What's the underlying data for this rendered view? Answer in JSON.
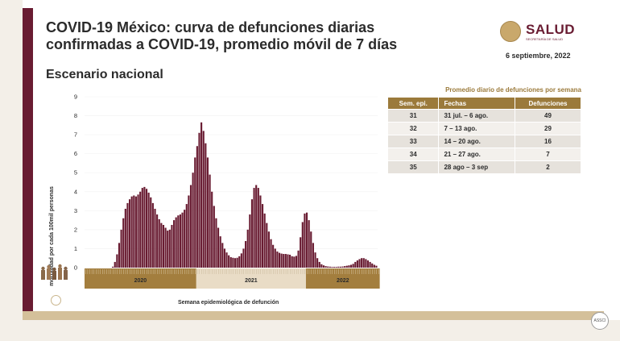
{
  "header": {
    "title_line1": "COVID-19 México: curva de defunciones diarias",
    "title_line2": "confirmadas a COVID-19, promedio móvil de 7 días",
    "subtitle": "Escenario nacional",
    "date": "6 septiembre, 2022",
    "logo_text": "SALUD",
    "logo_subtext": "SECRETARÍA DE SALUD"
  },
  "colors": {
    "brand": "#691c32",
    "gold": "#9b7a3b",
    "year2020": "#a37e3e",
    "year2021": "#e9dcc6",
    "year2022": "#a37e3e"
  },
  "chart_data": {
    "type": "bar",
    "title": "",
    "xlabel": "Semana epidemiológica de defunción",
    "ylabel": "mortalidad por cada 100mil personas",
    "ylim": [
      0,
      9
    ],
    "yticks": [
      "0",
      "1",
      "2",
      "3",
      "4",
      "5",
      "6",
      "7",
      "8",
      "9"
    ],
    "grid": false,
    "years": [
      {
        "label": "2020",
        "weeks": 53
      },
      {
        "label": "2021",
        "weeks": 52
      },
      {
        "label": "2022",
        "weeks": 35
      }
    ],
    "values": [
      0,
      0,
      0,
      0,
      0,
      0,
      0,
      0,
      0,
      0,
      0,
      0,
      0,
      0.05,
      0.3,
      0.7,
      1.3,
      2.0,
      2.6,
      3.1,
      3.4,
      3.6,
      3.75,
      3.8,
      3.75,
      3.85,
      4.0,
      4.2,
      4.25,
      4.15,
      3.95,
      3.7,
      3.4,
      3.1,
      2.8,
      2.55,
      2.35,
      2.25,
      2.1,
      1.95,
      2.0,
      2.25,
      2.5,
      2.65,
      2.75,
      2.8,
      2.9,
      3.05,
      3.35,
      3.8,
      4.35,
      5.0,
      5.8,
      6.4,
      7.1,
      7.65,
      7.2,
      6.55,
      5.8,
      4.9,
      4.0,
      3.25,
      2.6,
      2.1,
      1.65,
      1.3,
      1.0,
      0.8,
      0.65,
      0.55,
      0.52,
      0.5,
      0.52,
      0.6,
      0.75,
      1.0,
      1.4,
      2.0,
      2.8,
      3.6,
      4.2,
      4.35,
      4.2,
      3.8,
      3.35,
      2.85,
      2.35,
      1.9,
      1.5,
      1.2,
      1.0,
      0.85,
      0.78,
      0.74,
      0.72,
      0.72,
      0.7,
      0.68,
      0.6,
      0.58,
      0.62,
      0.9,
      1.6,
      2.4,
      2.85,
      2.9,
      2.5,
      1.9,
      1.3,
      0.8,
      0.5,
      0.3,
      0.18,
      0.12,
      0.08,
      0.06,
      0.05,
      0.04,
      0.04,
      0.04,
      0.05,
      0.05,
      0.06,
      0.08,
      0.1,
      0.12,
      0.15,
      0.2,
      0.3,
      0.38,
      0.45,
      0.5,
      0.5,
      0.45,
      0.38,
      0.3,
      0.22,
      0.15,
      0.1
    ]
  },
  "table": {
    "title": "Promedio diario de defunciones por semana",
    "headers": [
      "Sem. epi.",
      "Fechas",
      "Defunciones"
    ],
    "rows": [
      {
        "week": "31",
        "dates": "31 jul. – 6 ago.",
        "deaths": "49"
      },
      {
        "week": "32",
        "dates": "7 – 13 ago.",
        "deaths": "29"
      },
      {
        "week": "33",
        "dates": "14 – 20 ago.",
        "deaths": "16"
      },
      {
        "week": "34",
        "dates": "21 – 27 ago.",
        "deaths": "7"
      },
      {
        "week": "35",
        "dates": "28 ago – 3 sep",
        "deaths": "2"
      }
    ]
  },
  "footer": {
    "corner_logo": "ASSCI"
  }
}
